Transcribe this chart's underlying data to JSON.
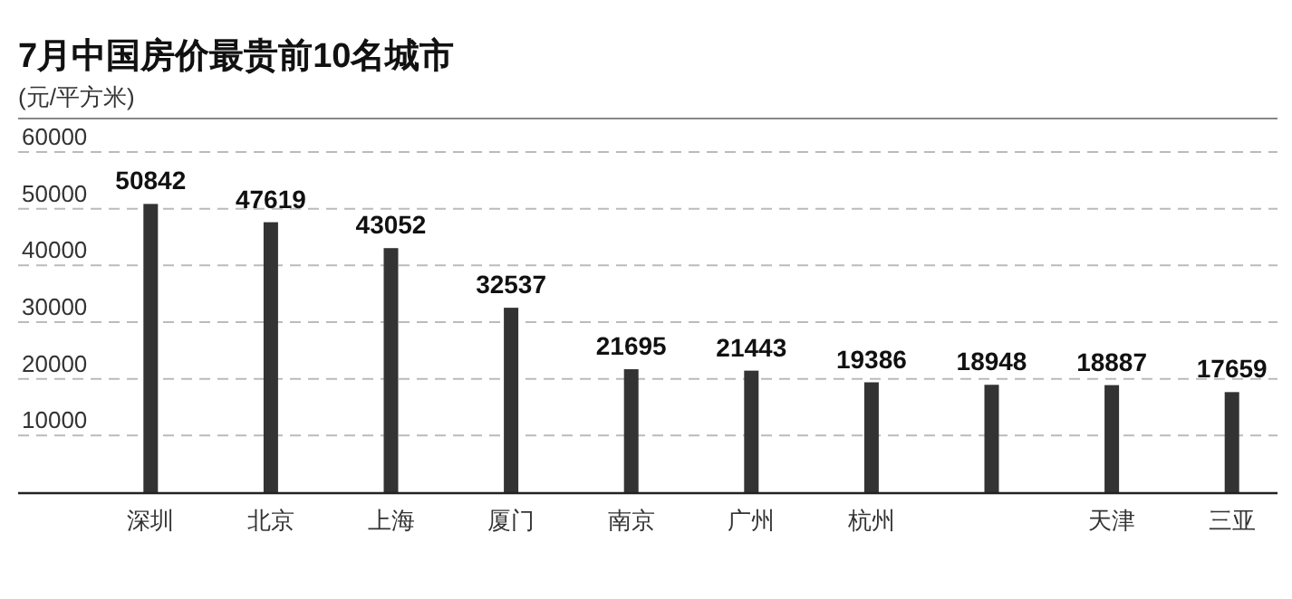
{
  "chart_data": {
    "type": "bar",
    "title": "7月中国房价最贵前10名城市",
    "subtitle": "(元/平方米)",
    "categories": [
      "深圳",
      "北京",
      "上海",
      "厦门",
      "南京",
      "广州",
      "杭州",
      null,
      "天津",
      "三亚"
    ],
    "values": [
      50842,
      47619,
      43052,
      32537,
      21695,
      21443,
      19386,
      18948,
      18887,
      17659
    ],
    "color": "#333333",
    "ylim": [
      0,
      60000
    ],
    "yticks": [
      10000,
      20000,
      30000,
      40000,
      50000,
      60000
    ],
    "grid": "y",
    "data_labels": true
  }
}
